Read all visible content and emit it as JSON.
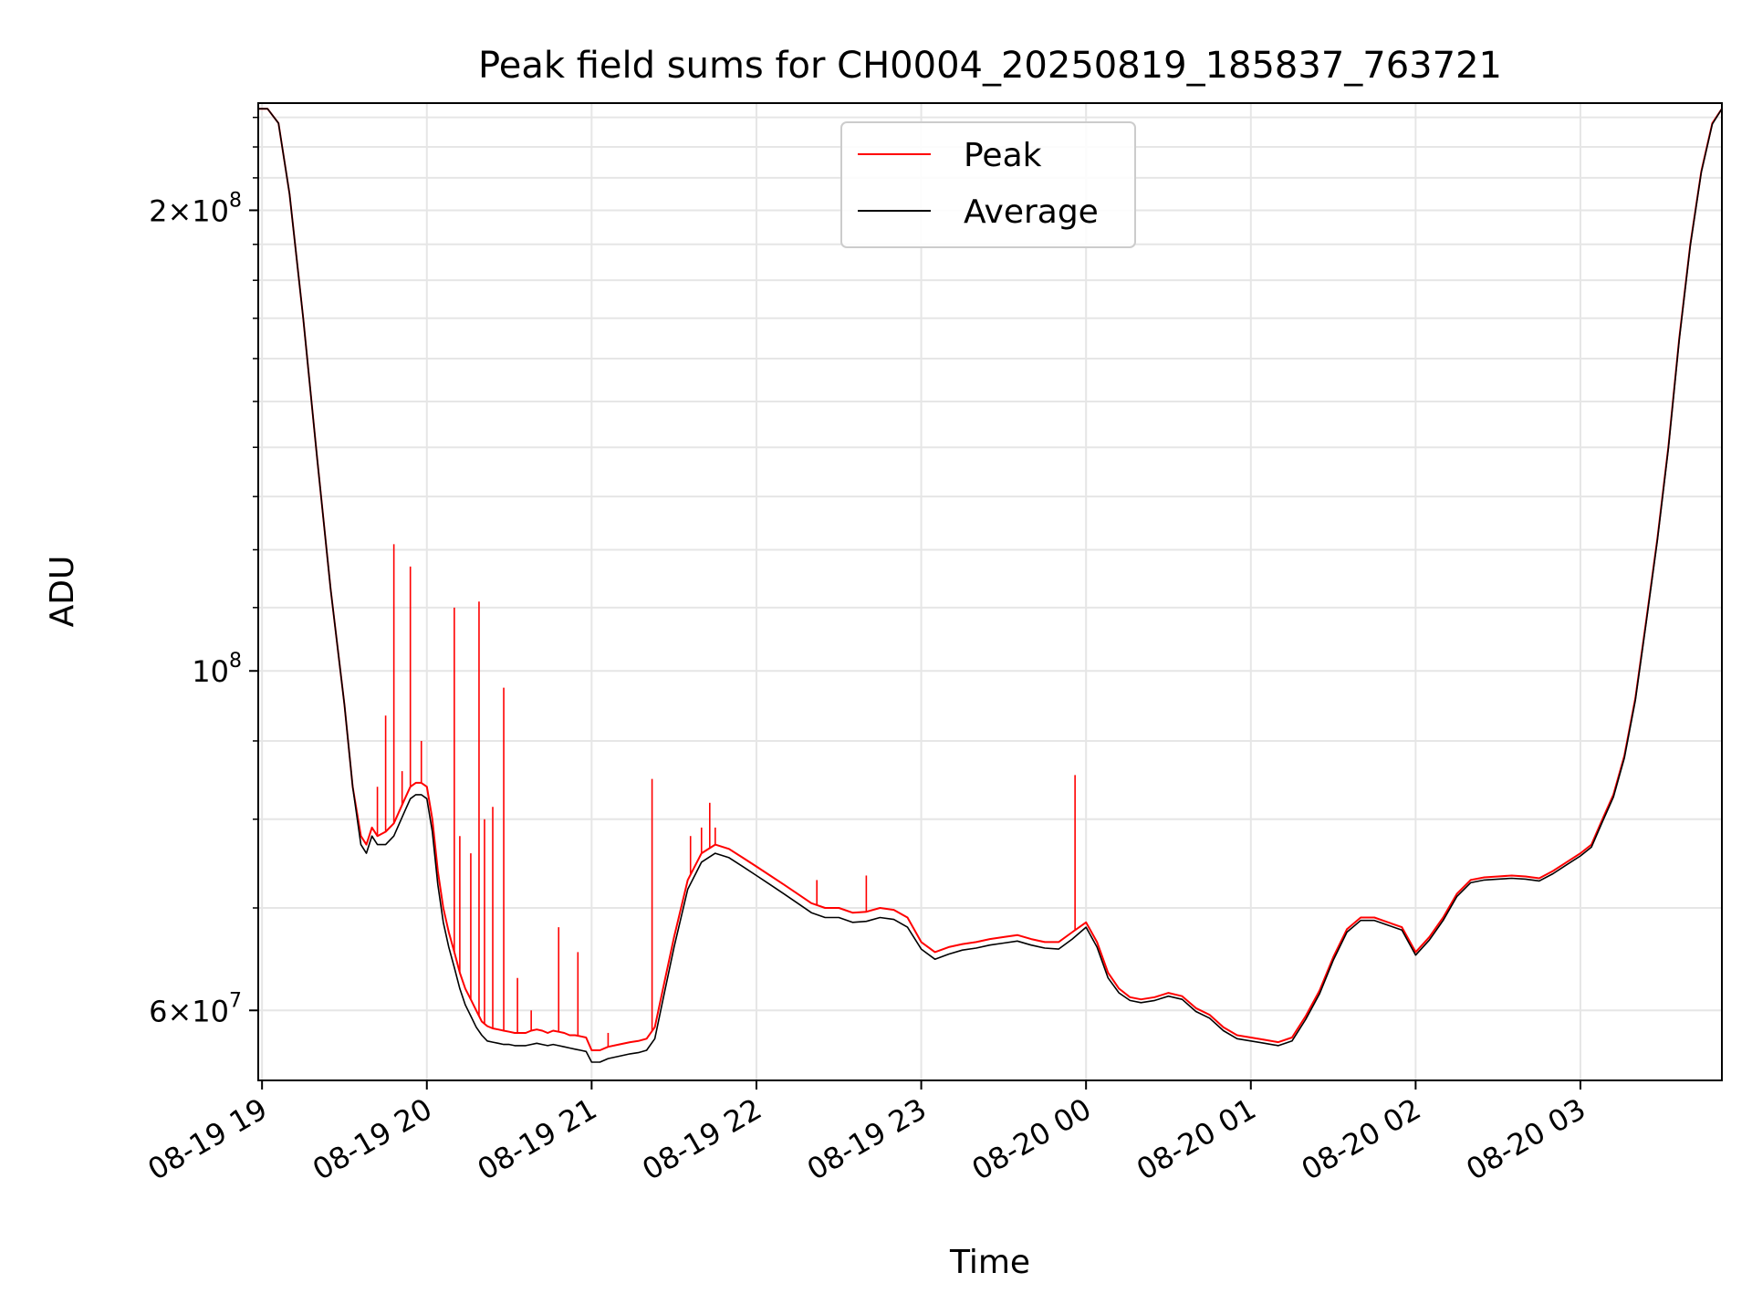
{
  "chart_data": {
    "type": "line",
    "title": "Peak field sums for CH0004_20250819_185837_763721",
    "xlabel": "Time",
    "ylabel": "ADU",
    "yscale": "log",
    "xlim": [
      "2025-08-19 18:58:37",
      "2025-08-20 03:51:30"
    ],
    "ylim": [
      54000000,
      235000000
    ],
    "grid": true,
    "legend_position": "upper-center",
    "x_ticks": [
      {
        "value": "2025-08-19 19:00",
        "label": "08-19 19"
      },
      {
        "value": "2025-08-19 20:00",
        "label": "08-19 20"
      },
      {
        "value": "2025-08-19 21:00",
        "label": "08-19 21"
      },
      {
        "value": "2025-08-19 22:00",
        "label": "08-19 22"
      },
      {
        "value": "2025-08-19 23:00",
        "label": "08-19 23"
      },
      {
        "value": "2025-08-20 00:00",
        "label": "08-20 00"
      },
      {
        "value": "2025-08-20 01:00",
        "label": "08-20 01"
      },
      {
        "value": "2025-08-20 02:00",
        "label": "08-20 02"
      },
      {
        "value": "2025-08-20 03:00",
        "label": "08-20 03"
      }
    ],
    "y_ticks": [
      {
        "value": 60000000,
        "base": "6×10",
        "exp": "7"
      },
      {
        "value": 100000000,
        "base": "10",
        "exp": "8"
      },
      {
        "value": 200000000,
        "base": "2×10",
        "exp": "8"
      }
    ],
    "series": [
      {
        "name": "Peak",
        "color": "#ff0000",
        "x": [
          "2025-08-19 18:58:37",
          "2025-08-19 19:02:00",
          "2025-08-19 19:06:00",
          "2025-08-19 19:10:00",
          "2025-08-19 19:15:00",
          "2025-08-19 19:20:00",
          "2025-08-19 19:25:00",
          "2025-08-19 19:30:00",
          "2025-08-19 19:33:00",
          "2025-08-19 19:36:00",
          "2025-08-19 19:38:00",
          "2025-08-19 19:40:00",
          "2025-08-19 19:42:00",
          "2025-08-19 19:45:00",
          "2025-08-19 19:48:00",
          "2025-08-19 19:50:00",
          "2025-08-19 19:52:00",
          "2025-08-19 19:54:00",
          "2025-08-19 19:56:00",
          "2025-08-19 19:58:00",
          "2025-08-19 20:00:00",
          "2025-08-19 20:02:00",
          "2025-08-19 20:04:00",
          "2025-08-19 20:06:00",
          "2025-08-19 20:08:00",
          "2025-08-19 20:10:00",
          "2025-08-19 20:12:00",
          "2025-08-19 20:14:00",
          "2025-08-19 20:16:00",
          "2025-08-19 20:18:00",
          "2025-08-19 20:20:00",
          "2025-08-19 20:22:00",
          "2025-08-19 20:24:00",
          "2025-08-19 20:26:00",
          "2025-08-19 20:28:00",
          "2025-08-19 20:30:00",
          "2025-08-19 20:32:00",
          "2025-08-19 20:34:00",
          "2025-08-19 20:36:00",
          "2025-08-19 20:38:00",
          "2025-08-19 20:40:00",
          "2025-08-19 20:42:00",
          "2025-08-19 20:44:00",
          "2025-08-19 20:46:00",
          "2025-08-19 20:48:00",
          "2025-08-19 20:50:00",
          "2025-08-19 20:52:00",
          "2025-08-19 20:54:00",
          "2025-08-19 20:56:00",
          "2025-08-19 20:58:00",
          "2025-08-19 21:00:00",
          "2025-08-19 21:03:00",
          "2025-08-19 21:06:00",
          "2025-08-19 21:10:00",
          "2025-08-19 21:14:00",
          "2025-08-19 21:17:00",
          "2025-08-19 21:20:00",
          "2025-08-19 21:23:00",
          "2025-08-19 21:26:00",
          "2025-08-19 21:30:00",
          "2025-08-19 21:35:00",
          "2025-08-19 21:40:00",
          "2025-08-19 21:45:00",
          "2025-08-19 21:50:00",
          "2025-08-19 21:55:00",
          "2025-08-19 22:00:00",
          "2025-08-19 22:05:00",
          "2025-08-19 22:10:00",
          "2025-08-19 22:15:00",
          "2025-08-19 22:20:00",
          "2025-08-19 22:25:00",
          "2025-08-19 22:30:00",
          "2025-08-19 22:35:00",
          "2025-08-19 22:40:00",
          "2025-08-19 22:45:00",
          "2025-08-19 22:50:00",
          "2025-08-19 22:55:00",
          "2025-08-19 23:00:00",
          "2025-08-19 23:05:00",
          "2025-08-19 23:10:00",
          "2025-08-19 23:15:00",
          "2025-08-19 23:20:00",
          "2025-08-19 23:25:00",
          "2025-08-19 23:30:00",
          "2025-08-19 23:35:00",
          "2025-08-19 23:40:00",
          "2025-08-19 23:45:00",
          "2025-08-19 23:50:00",
          "2025-08-19 23:55:00",
          "2025-08-20 00:00:00",
          "2025-08-20 00:04:00",
          "2025-08-20 00:08:00",
          "2025-08-20 00:12:00",
          "2025-08-20 00:16:00",
          "2025-08-20 00:20:00",
          "2025-08-20 00:25:00",
          "2025-08-20 00:30:00",
          "2025-08-20 00:35:00",
          "2025-08-20 00:40:00",
          "2025-08-20 00:45:00",
          "2025-08-20 00:50:00",
          "2025-08-20 00:55:00",
          "2025-08-20 01:00:00",
          "2025-08-20 01:05:00",
          "2025-08-20 01:10:00",
          "2025-08-20 01:15:00",
          "2025-08-20 01:20:00",
          "2025-08-20 01:25:00",
          "2025-08-20 01:30:00",
          "2025-08-20 01:35:00",
          "2025-08-20 01:40:00",
          "2025-08-20 01:45:00",
          "2025-08-20 01:50:00",
          "2025-08-20 01:55:00",
          "2025-08-20 02:00:00",
          "2025-08-20 02:05:00",
          "2025-08-20 02:10:00",
          "2025-08-20 02:15:00",
          "2025-08-20 02:20:00",
          "2025-08-20 02:25:00",
          "2025-08-20 02:30:00",
          "2025-08-20 02:35:00",
          "2025-08-20 02:40:00",
          "2025-08-20 02:45:00",
          "2025-08-20 02:50:00",
          "2025-08-20 02:55:00",
          "2025-08-20 03:00:00",
          "2025-08-20 03:04:00",
          "2025-08-20 03:08:00",
          "2025-08-20 03:12:00",
          "2025-08-20 03:16:00",
          "2025-08-20 03:20:00",
          "2025-08-20 03:24:00",
          "2025-08-20 03:28:00",
          "2025-08-20 03:32:00",
          "2025-08-20 03:36:00",
          "2025-08-20 03:40:00",
          "2025-08-20 03:44:00",
          "2025-08-20 03:48:00",
          "2025-08-20 03:51:30"
        ],
        "values": [
          233000000,
          233000000,
          228000000,
          205000000,
          170000000,
          138000000,
          113000000,
          95000000,
          84000000,
          78000000,
          77000000,
          79000000,
          78000000,
          78500000,
          79500000,
          81000000,
          82500000,
          84000000,
          84500000,
          84500000,
          84000000,
          80000000,
          74000000,
          70000000,
          67500000,
          65500000,
          63500000,
          62000000,
          61000000,
          60000000,
          59000000,
          58600000,
          58400000,
          58300000,
          58200000,
          58100000,
          58000000,
          58000000,
          58000000,
          58200000,
          58300000,
          58200000,
          58000000,
          58200000,
          58100000,
          58000000,
          57800000,
          57800000,
          57700000,
          57600000,
          56500000,
          56500000,
          56800000,
          57000000,
          57200000,
          57300000,
          57500000,
          58500000,
          62000000,
          67000000,
          73000000,
          76000000,
          77000000,
          76500000,
          75500000,
          74500000,
          73500000,
          72500000,
          71500000,
          70500000,
          70000000,
          70000000,
          69500000,
          69600000,
          70000000,
          69800000,
          69000000,
          66500000,
          65500000,
          66000000,
          66300000,
          66500000,
          66800000,
          67000000,
          67200000,
          66800000,
          66500000,
          66500000,
          67500000,
          68500000,
          66500000,
          63500000,
          62000000,
          61200000,
          61000000,
          61200000,
          61600000,
          61300000,
          60200000,
          59600000,
          58500000,
          57800000,
          57600000,
          57400000,
          57200000,
          57600000,
          59500000,
          61800000,
          65000000,
          67800000,
          69000000,
          69000000,
          68500000,
          68000000,
          65500000,
          67000000,
          69000000,
          71500000,
          73000000,
          73300000,
          73400000,
          73500000,
          73400000,
          73200000,
          74000000,
          75000000,
          76000000,
          77000000,
          80000000,
          83000000,
          88000000,
          96000000,
          108000000,
          122000000,
          140000000,
          165000000,
          190000000,
          212000000,
          228000000,
          233000000
        ]
      },
      {
        "name": "Average",
        "color": "#000000",
        "x": [
          "2025-08-19 18:58:37",
          "2025-08-19 19:02:00",
          "2025-08-19 19:06:00",
          "2025-08-19 19:10:00",
          "2025-08-19 19:15:00",
          "2025-08-19 19:20:00",
          "2025-08-19 19:25:00",
          "2025-08-19 19:30:00",
          "2025-08-19 19:33:00",
          "2025-08-19 19:36:00",
          "2025-08-19 19:38:00",
          "2025-08-19 19:40:00",
          "2025-08-19 19:42:00",
          "2025-08-19 19:45:00",
          "2025-08-19 19:48:00",
          "2025-08-19 19:50:00",
          "2025-08-19 19:52:00",
          "2025-08-19 19:54:00",
          "2025-08-19 19:56:00",
          "2025-08-19 19:58:00",
          "2025-08-19 20:00:00",
          "2025-08-19 20:02:00",
          "2025-08-19 20:04:00",
          "2025-08-19 20:06:00",
          "2025-08-19 20:08:00",
          "2025-08-19 20:10:00",
          "2025-08-19 20:12:00",
          "2025-08-19 20:14:00",
          "2025-08-19 20:16:00",
          "2025-08-19 20:18:00",
          "2025-08-19 20:20:00",
          "2025-08-19 20:22:00",
          "2025-08-19 20:24:00",
          "2025-08-19 20:26:00",
          "2025-08-19 20:28:00",
          "2025-08-19 20:30:00",
          "2025-08-19 20:32:00",
          "2025-08-19 20:34:00",
          "2025-08-19 20:36:00",
          "2025-08-19 20:38:00",
          "2025-08-19 20:40:00",
          "2025-08-19 20:42:00",
          "2025-08-19 20:44:00",
          "2025-08-19 20:46:00",
          "2025-08-19 20:48:00",
          "2025-08-19 20:50:00",
          "2025-08-19 20:52:00",
          "2025-08-19 20:54:00",
          "2025-08-19 20:56:00",
          "2025-08-19 20:58:00",
          "2025-08-19 21:00:00",
          "2025-08-19 21:03:00",
          "2025-08-19 21:06:00",
          "2025-08-19 21:10:00",
          "2025-08-19 21:14:00",
          "2025-08-19 21:17:00",
          "2025-08-19 21:20:00",
          "2025-08-19 21:23:00",
          "2025-08-19 21:26:00",
          "2025-08-19 21:30:00",
          "2025-08-19 21:35:00",
          "2025-08-19 21:40:00",
          "2025-08-19 21:45:00",
          "2025-08-19 21:50:00",
          "2025-08-19 21:55:00",
          "2025-08-19 22:00:00",
          "2025-08-19 22:05:00",
          "2025-08-19 22:10:00",
          "2025-08-19 22:15:00",
          "2025-08-19 22:20:00",
          "2025-08-19 22:25:00",
          "2025-08-19 22:30:00",
          "2025-08-19 22:35:00",
          "2025-08-19 22:40:00",
          "2025-08-19 22:45:00",
          "2025-08-19 22:50:00",
          "2025-08-19 22:55:00",
          "2025-08-19 23:00:00",
          "2025-08-19 23:05:00",
          "2025-08-19 23:10:00",
          "2025-08-19 23:15:00",
          "2025-08-19 23:20:00",
          "2025-08-19 23:25:00",
          "2025-08-19 23:30:00",
          "2025-08-19 23:35:00",
          "2025-08-19 23:40:00",
          "2025-08-19 23:45:00",
          "2025-08-19 23:50:00",
          "2025-08-19 23:55:00",
          "2025-08-20 00:00:00",
          "2025-08-20 00:04:00",
          "2025-08-20 00:08:00",
          "2025-08-20 00:12:00",
          "2025-08-20 00:16:00",
          "2025-08-20 00:20:00",
          "2025-08-20 00:25:00",
          "2025-08-20 00:30:00",
          "2025-08-20 00:35:00",
          "2025-08-20 00:40:00",
          "2025-08-20 00:45:00",
          "2025-08-20 00:50:00",
          "2025-08-20 00:55:00",
          "2025-08-20 01:00:00",
          "2025-08-20 01:05:00",
          "2025-08-20 01:10:00",
          "2025-08-20 01:15:00",
          "2025-08-20 01:20:00",
          "2025-08-20 01:25:00",
          "2025-08-20 01:30:00",
          "2025-08-20 01:35:00",
          "2025-08-20 01:40:00",
          "2025-08-20 01:45:00",
          "2025-08-20 01:50:00",
          "2025-08-20 01:55:00",
          "2025-08-20 02:00:00",
          "2025-08-20 02:05:00",
          "2025-08-20 02:10:00",
          "2025-08-20 02:15:00",
          "2025-08-20 02:20:00",
          "2025-08-20 02:25:00",
          "2025-08-20 02:30:00",
          "2025-08-20 02:35:00",
          "2025-08-20 02:40:00",
          "2025-08-20 02:45:00",
          "2025-08-20 02:50:00",
          "2025-08-20 02:55:00",
          "2025-08-20 03:00:00",
          "2025-08-20 03:04:00",
          "2025-08-20 03:08:00",
          "2025-08-20 03:12:00",
          "2025-08-20 03:16:00",
          "2025-08-20 03:20:00",
          "2025-08-20 03:24:00",
          "2025-08-20 03:28:00",
          "2025-08-20 03:32:00",
          "2025-08-20 03:36:00",
          "2025-08-20 03:40:00",
          "2025-08-20 03:44:00",
          "2025-08-20 03:48:00",
          "2025-08-20 03:51:30"
        ],
        "values": [
          233000000,
          233000000,
          228000000,
          205000000,
          170000000,
          138000000,
          113000000,
          95000000,
          84000000,
          77000000,
          76000000,
          78000000,
          77000000,
          77000000,
          78000000,
          79500000,
          81000000,
          82500000,
          83000000,
          83000000,
          82500000,
          78500000,
          72500000,
          68500000,
          66000000,
          64000000,
          62000000,
          60500000,
          59500000,
          58500000,
          57800000,
          57300000,
          57200000,
          57100000,
          57000000,
          57000000,
          56900000,
          56900000,
          56900000,
          57000000,
          57100000,
          57000000,
          56900000,
          57000000,
          56900000,
          56800000,
          56700000,
          56600000,
          56500000,
          56400000,
          55500000,
          55500000,
          55800000,
          56000000,
          56200000,
          56300000,
          56500000,
          57500000,
          61000000,
          66000000,
          72000000,
          75000000,
          76000000,
          75500000,
          74500000,
          73500000,
          72500000,
          71500000,
          70500000,
          69500000,
          69000000,
          69000000,
          68500000,
          68600000,
          69000000,
          68800000,
          68000000,
          65800000,
          64800000,
          65300000,
          65700000,
          65900000,
          66200000,
          66400000,
          66600000,
          66200000,
          65900000,
          65800000,
          66800000,
          68000000,
          66000000,
          63000000,
          61600000,
          60900000,
          60700000,
          60900000,
          61300000,
          61000000,
          59900000,
          59300000,
          58200000,
          57500000,
          57300000,
          57100000,
          56900000,
          57300000,
          59200000,
          61500000,
          64700000,
          67500000,
          68700000,
          68700000,
          68200000,
          67700000,
          65200000,
          66700000,
          68700000,
          71200000,
          72700000,
          73000000,
          73100000,
          73200000,
          73100000,
          72900000,
          73700000,
          74700000,
          75700000,
          76700000,
          79700000,
          82700000,
          87700000,
          95700000,
          107700000,
          121700000,
          139700000,
          164700000,
          189700000,
          211700000,
          227700000,
          233000000
        ]
      }
    ],
    "spikes": {
      "color": "#ff0000",
      "x": [
        "2025-08-19 19:42:00",
        "2025-08-19 19:45:00",
        "2025-08-19 19:48:00",
        "2025-08-19 19:51:00",
        "2025-08-19 19:54:00",
        "2025-08-19 19:58:00",
        "2025-08-19 20:10:00",
        "2025-08-19 20:12:00",
        "2025-08-19 20:16:00",
        "2025-08-19 20:19:00",
        "2025-08-19 20:21:00",
        "2025-08-19 20:24:00",
        "2025-08-19 20:28:00",
        "2025-08-19 20:33:00",
        "2025-08-19 20:38:00",
        "2025-08-19 20:48:00",
        "2025-08-19 20:55:00",
        "2025-08-19 21:06:00",
        "2025-08-19 21:22:00",
        "2025-08-19 21:36:00",
        "2025-08-19 21:40:00",
        "2025-08-19 21:43:00",
        "2025-08-19 21:45:00",
        "2025-08-19 22:22:00",
        "2025-08-19 22:40:00",
        "2025-08-19 23:56:00"
      ],
      "values": [
        84000000,
        93500000,
        121000000,
        86000000,
        117000000,
        90000000,
        110000000,
        78000000,
        76000000,
        111000000,
        80000000,
        81500000,
        97500000,
        63000000,
        60000000,
        68000000,
        65500000,
        58000000,
        85000000,
        78000000,
        79000000,
        82000000,
        79000000,
        73000000,
        73500000,
        85500000
      ]
    }
  }
}
